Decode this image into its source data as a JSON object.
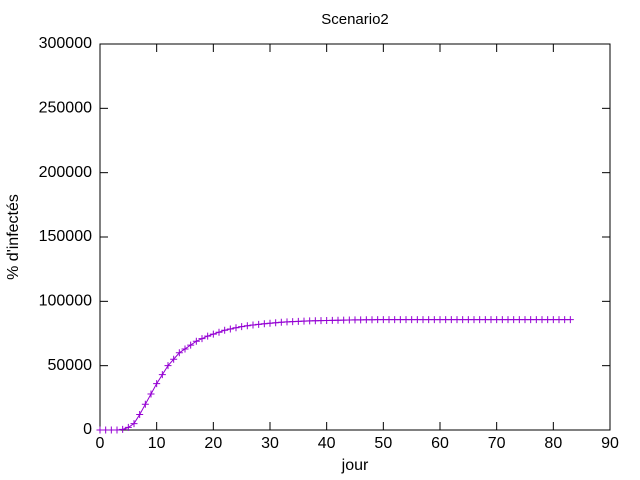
{
  "chart_data": {
    "type": "line",
    "title": "Scenario2",
    "x_label": "jour",
    "y_label": "% d'infectés",
    "x": [
      0,
      1,
      2,
      3,
      4,
      5,
      6,
      7,
      8,
      9,
      10,
      11,
      12,
      13,
      14,
      15,
      16,
      17,
      18,
      19,
      20,
      21,
      22,
      23,
      24,
      25,
      26,
      27,
      28,
      29,
      30,
      31,
      32,
      33,
      34,
      35,
      36,
      37,
      38,
      39,
      40,
      41,
      42,
      43,
      44,
      45,
      46,
      47,
      48,
      49,
      50,
      51,
      52,
      53,
      54,
      55,
      56,
      57,
      58,
      59,
      60,
      61,
      62,
      63,
      64,
      65,
      66,
      67,
      68,
      69,
      70,
      71,
      72,
      73,
      74,
      75,
      76,
      77,
      78,
      79,
      80,
      81,
      82,
      83
    ],
    "values": [
      0,
      0,
      0,
      0,
      500,
      2000,
      5000,
      12000,
      20000,
      28000,
      36000,
      43000,
      50000,
      55000,
      60000,
      63000,
      66000,
      69000,
      71000,
      73000,
      74500,
      76000,
      77500,
      78500,
      79500,
      80300,
      81000,
      81600,
      82100,
      82600,
      83000,
      83400,
      83700,
      84000,
      84200,
      84400,
      84600,
      84800,
      84900,
      85000,
      85100,
      85200,
      85300,
      85400,
      85500,
      85550,
      85600,
      85650,
      85700,
      85750,
      85800,
      85800,
      85800,
      85800,
      85800,
      85800,
      85800,
      85800,
      85800,
      85800,
      85800,
      85800,
      85800,
      85800,
      85800,
      85800,
      85800,
      85800,
      85800,
      85800,
      85800,
      85800,
      85800,
      85800,
      85800,
      85800,
      85800,
      85800,
      85800,
      85800,
      85800,
      85800,
      85800,
      85800
    ],
    "color": "#9400d3",
    "xlim": [
      0,
      90
    ],
    "xticks": [
      0,
      10,
      20,
      30,
      40,
      50,
      60,
      70,
      80,
      90
    ],
    "ylim": [
      0,
      300000
    ],
    "yticks": [
      0,
      50000,
      100000,
      150000,
      200000,
      250000,
      300000
    ]
  }
}
